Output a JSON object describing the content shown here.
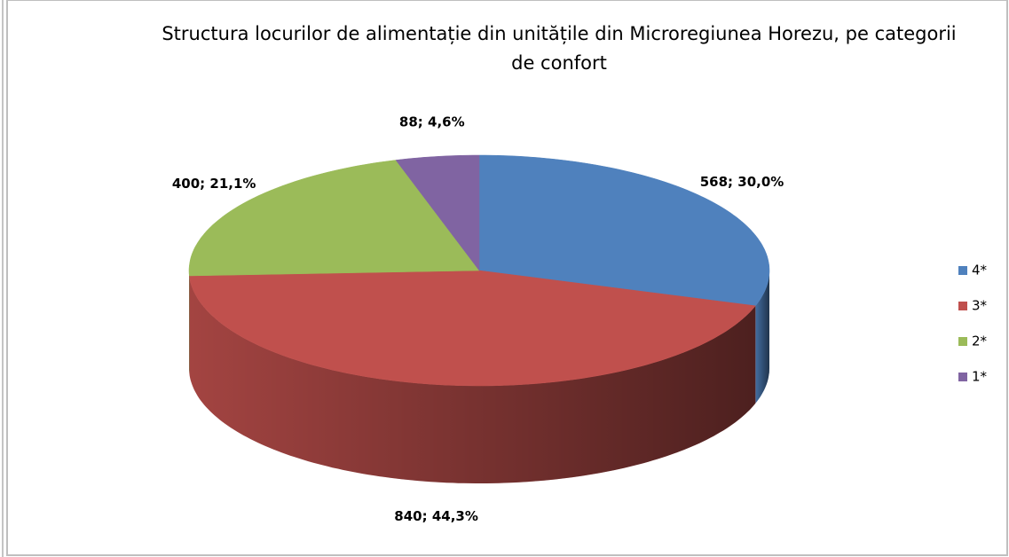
{
  "chart_data": {
    "type": "pie3d",
    "title": "Structura locurilor de alimentație din unitățile din Microregiunea Horezu, pe categorii de confort",
    "categories": [
      "4*",
      "3*",
      "2*",
      "1*"
    ],
    "values": [
      568,
      840,
      400,
      88
    ],
    "value_labels": [
      "568; 30,0%",
      "840; 44,3%",
      "400; 21,1%",
      "88; 4,6%"
    ],
    "colors": [
      "#4f81bd",
      "#c0504d",
      "#9bbb59",
      "#8064a2"
    ],
    "legend": "right"
  }
}
